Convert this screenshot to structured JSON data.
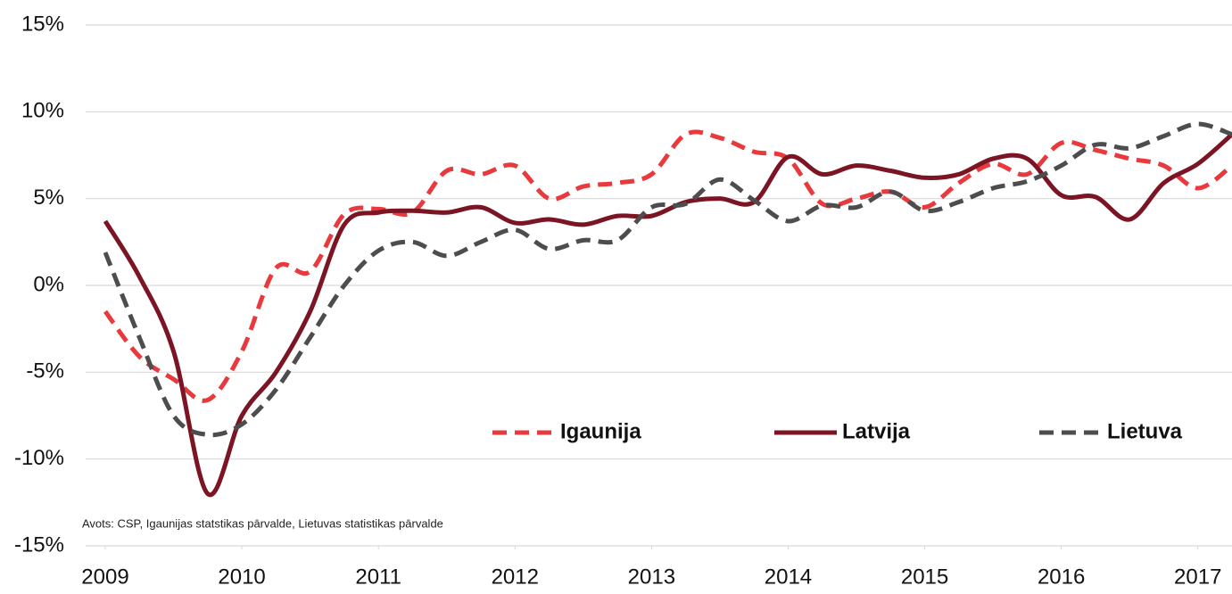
{
  "chart_data": {
    "type": "line",
    "x": [
      2009,
      2009.25,
      2009.5,
      2009.75,
      2010,
      2010.25,
      2010.5,
      2010.75,
      2011,
      2011.25,
      2011.5,
      2011.75,
      2012,
      2012.25,
      2012.5,
      2012.75,
      2013,
      2013.25,
      2013.5,
      2013.75,
      2014,
      2014.25,
      2014.5,
      2014.75,
      2015,
      2015.25,
      2015.5,
      2015.75,
      2016,
      2016.25,
      2016.5,
      2016.75,
      2017,
      2017.25
    ],
    "series": [
      {
        "name": "Igaunija",
        "color": "#e8393d",
        "dash": true,
        "values": [
          -1.5,
          -4.1,
          -5.4,
          -6.6,
          -3.8,
          1.0,
          0.8,
          4.1,
          4.4,
          4.2,
          6.6,
          6.4,
          6.9,
          5.0,
          5.7,
          5.9,
          6.4,
          8.7,
          8.5,
          7.7,
          7.3,
          4.7,
          5.0,
          5.4,
          4.5,
          5.9,
          7.0,
          6.4,
          8.2,
          7.8,
          7.3,
          6.9,
          5.6,
          6.9
        ]
      },
      {
        "name": "Latvija",
        "color": "#7b1423",
        "dash": false,
        "values": [
          3.7,
          0.5,
          -3.8,
          -12.0,
          -7.5,
          -5.0,
          -1.5,
          3.5,
          4.2,
          4.3,
          4.2,
          4.5,
          3.6,
          3.8,
          3.5,
          4.0,
          4.0,
          4.8,
          5.0,
          4.8,
          7.4,
          6.4,
          6.9,
          6.6,
          6.2,
          6.4,
          7.3,
          7.3,
          5.2,
          5.1,
          3.8,
          5.9,
          7.0,
          8.7
        ]
      },
      {
        "name": "Lietuva",
        "color": "#4d4d4d",
        "dash": true,
        "values": [
          1.9,
          -3.0,
          -7.5,
          -8.6,
          -8.0,
          -6.0,
          -3.0,
          0.0,
          2.0,
          2.5,
          1.7,
          2.5,
          3.2,
          2.1,
          2.6,
          2.6,
          4.5,
          4.7,
          6.1,
          4.9,
          3.7,
          4.6,
          4.5,
          5.4,
          4.3,
          4.8,
          5.6,
          6.0,
          6.9,
          8.1,
          7.9,
          8.6,
          9.3,
          8.7
        ]
      }
    ],
    "xlim": [
      2009,
      2017.25
    ],
    "xticks": [
      2009,
      2010,
      2011,
      2012,
      2013,
      2014,
      2015,
      2016,
      2017
    ],
    "ylim": [
      -15,
      15
    ],
    "yticks": [
      {
        "value": -15,
        "label": "-15%"
      },
      {
        "value": -10,
        "label": "-10%"
      },
      {
        "value": -5,
        "label": "-5%"
      },
      {
        "value": 0,
        "label": "0%"
      },
      {
        "value": 5,
        "label": "5%"
      },
      {
        "value": 10,
        "label": "10%"
      },
      {
        "value": 15,
        "label": "15%"
      }
    ],
    "grid": true,
    "source": "Avots: CSP, Igaunijas statstikas pārvalde, Lietuvas statistikas pārvalde"
  }
}
